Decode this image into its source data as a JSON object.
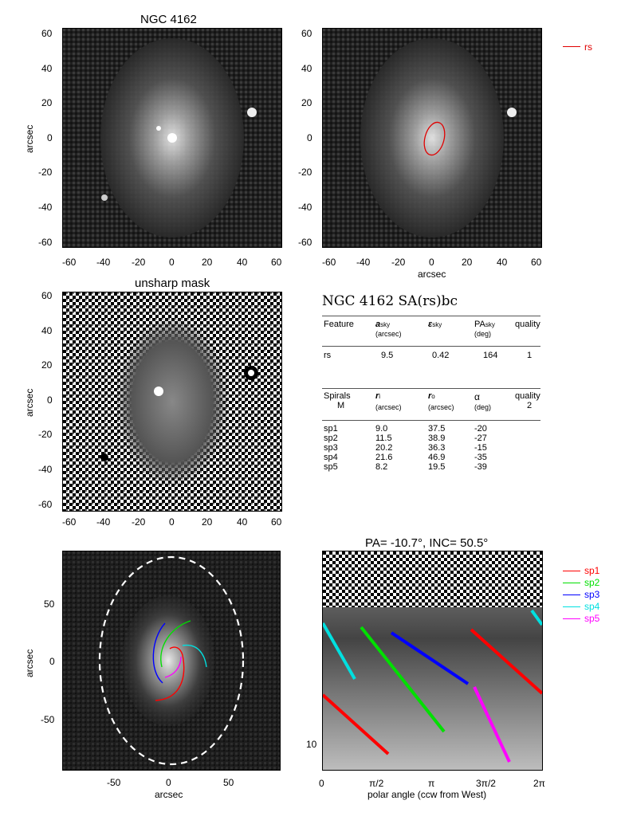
{
  "panel1": {
    "title": "NGC 4162",
    "ylabel": "arcsec",
    "xticks": [
      "-60",
      "-40",
      "-20",
      "0",
      "20",
      "40",
      "60"
    ],
    "yticks": [
      "60",
      "40",
      "20",
      "0",
      "-20",
      "-40",
      "-60"
    ]
  },
  "panel2": {
    "xlabel": "arcsec",
    "xticks": [
      "-60",
      "-40",
      "-20",
      "0",
      "20",
      "40",
      "60"
    ],
    "yticks": [
      "60",
      "40",
      "20",
      "0",
      "-20",
      "-40",
      "-60"
    ],
    "legend": "rs",
    "ellipse_color": "#e00000"
  },
  "panel3": {
    "title": "unsharp mask",
    "ylabel": "arcsec",
    "xticks": [
      "-60",
      "-40",
      "-20",
      "0",
      "20",
      "40",
      "60"
    ],
    "yticks": [
      "60",
      "40",
      "20",
      "0",
      "-20",
      "-40",
      "-60"
    ]
  },
  "table": {
    "heading": "NGC 4162  SA(rs)bc",
    "feature_header": {
      "c1": "Feature",
      "c2": "a",
      "c2sub": "sky",
      "c2unit": "(arcsec)",
      "c3": "ε",
      "c3sub": "sky",
      "c4": "PA",
      "c4sub": "sky",
      "c4unit": "(deg)",
      "c5": "quality"
    },
    "features": [
      {
        "name": "rs",
        "a": "9.5",
        "eps": "0.42",
        "pa": "164",
        "quality": "1"
      }
    ],
    "spiral_header": {
      "c1": "Spirals",
      "c1b": "M",
      "c2": "r",
      "c2sub": "i",
      "c2unit": "(arcsec)",
      "c3": "r",
      "c3sub": "o",
      "c3unit": "(arcsec)",
      "c4": "α",
      "c4unit": "(deg)",
      "c5": "quality",
      "c5b": "2"
    },
    "spirals": [
      {
        "name": "sp1",
        "ri": "9.0",
        "ro": "37.5",
        "alpha": "-20"
      },
      {
        "name": "sp2",
        "ri": "11.5",
        "ro": "38.9",
        "alpha": "-27"
      },
      {
        "name": "sp3",
        "ri": "20.2",
        "ro": "36.3",
        "alpha": "-15"
      },
      {
        "name": "sp4",
        "ri": "21.6",
        "ro": "46.9",
        "alpha": "-35"
      },
      {
        "name": "sp5",
        "ri": "8.2",
        "ro": "19.5",
        "alpha": "-39"
      }
    ]
  },
  "panel4": {
    "xlabel": "arcsec",
    "ylabel": "arcsec",
    "xticks": [
      "-50",
      "0",
      "50"
    ],
    "yticks": [
      "50",
      "0",
      "-50"
    ]
  },
  "panel5": {
    "title": "PA= -10.7°, INC=  50.5°",
    "xlabel": "polar angle (ccw from West)",
    "xticks": [
      "0",
      "π/2",
      "π",
      "3π/2",
      "2π"
    ],
    "yticks": [
      "10"
    ]
  },
  "spiral_legend": [
    {
      "name": "sp1",
      "color": "#ff0000"
    },
    {
      "name": "sp2",
      "color": "#00e000"
    },
    {
      "name": "sp3",
      "color": "#0000ff"
    },
    {
      "name": "sp4",
      "color": "#00e0e0"
    },
    {
      "name": "sp5",
      "color": "#ff00ff"
    }
  ]
}
